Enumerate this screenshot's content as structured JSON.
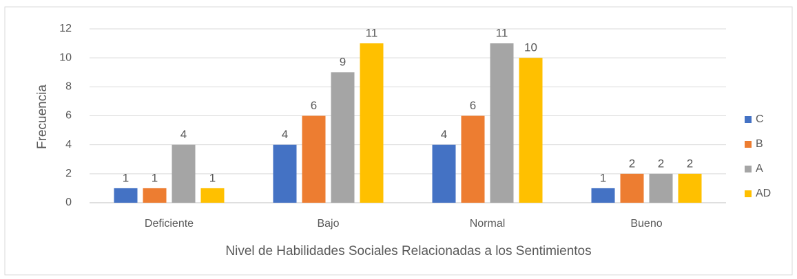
{
  "chart_data": {
    "type": "bar",
    "categories": [
      "Deficiente",
      "Bajo",
      "Normal",
      "Bueno"
    ],
    "series": [
      {
        "name": "C",
        "color": "#4472c4",
        "values": [
          1,
          4,
          4,
          1
        ]
      },
      {
        "name": "B",
        "color": "#ed7d31",
        "values": [
          1,
          6,
          6,
          2
        ]
      },
      {
        "name": "A",
        "color": "#a5a5a5",
        "values": [
          4,
          9,
          11,
          2
        ]
      },
      {
        "name": "AD",
        "color": "#ffc000",
        "values": [
          1,
          11,
          10,
          2
        ]
      }
    ],
    "x_label": "Nivel de Habilidades Sociales Relacionadas a los Sentimientos",
    "y_label": "Frecuencia",
    "ylim": [
      0,
      12
    ],
    "yticks": [
      0,
      2,
      4,
      6,
      8,
      10,
      12
    ],
    "grid": true,
    "legend": "right"
  }
}
